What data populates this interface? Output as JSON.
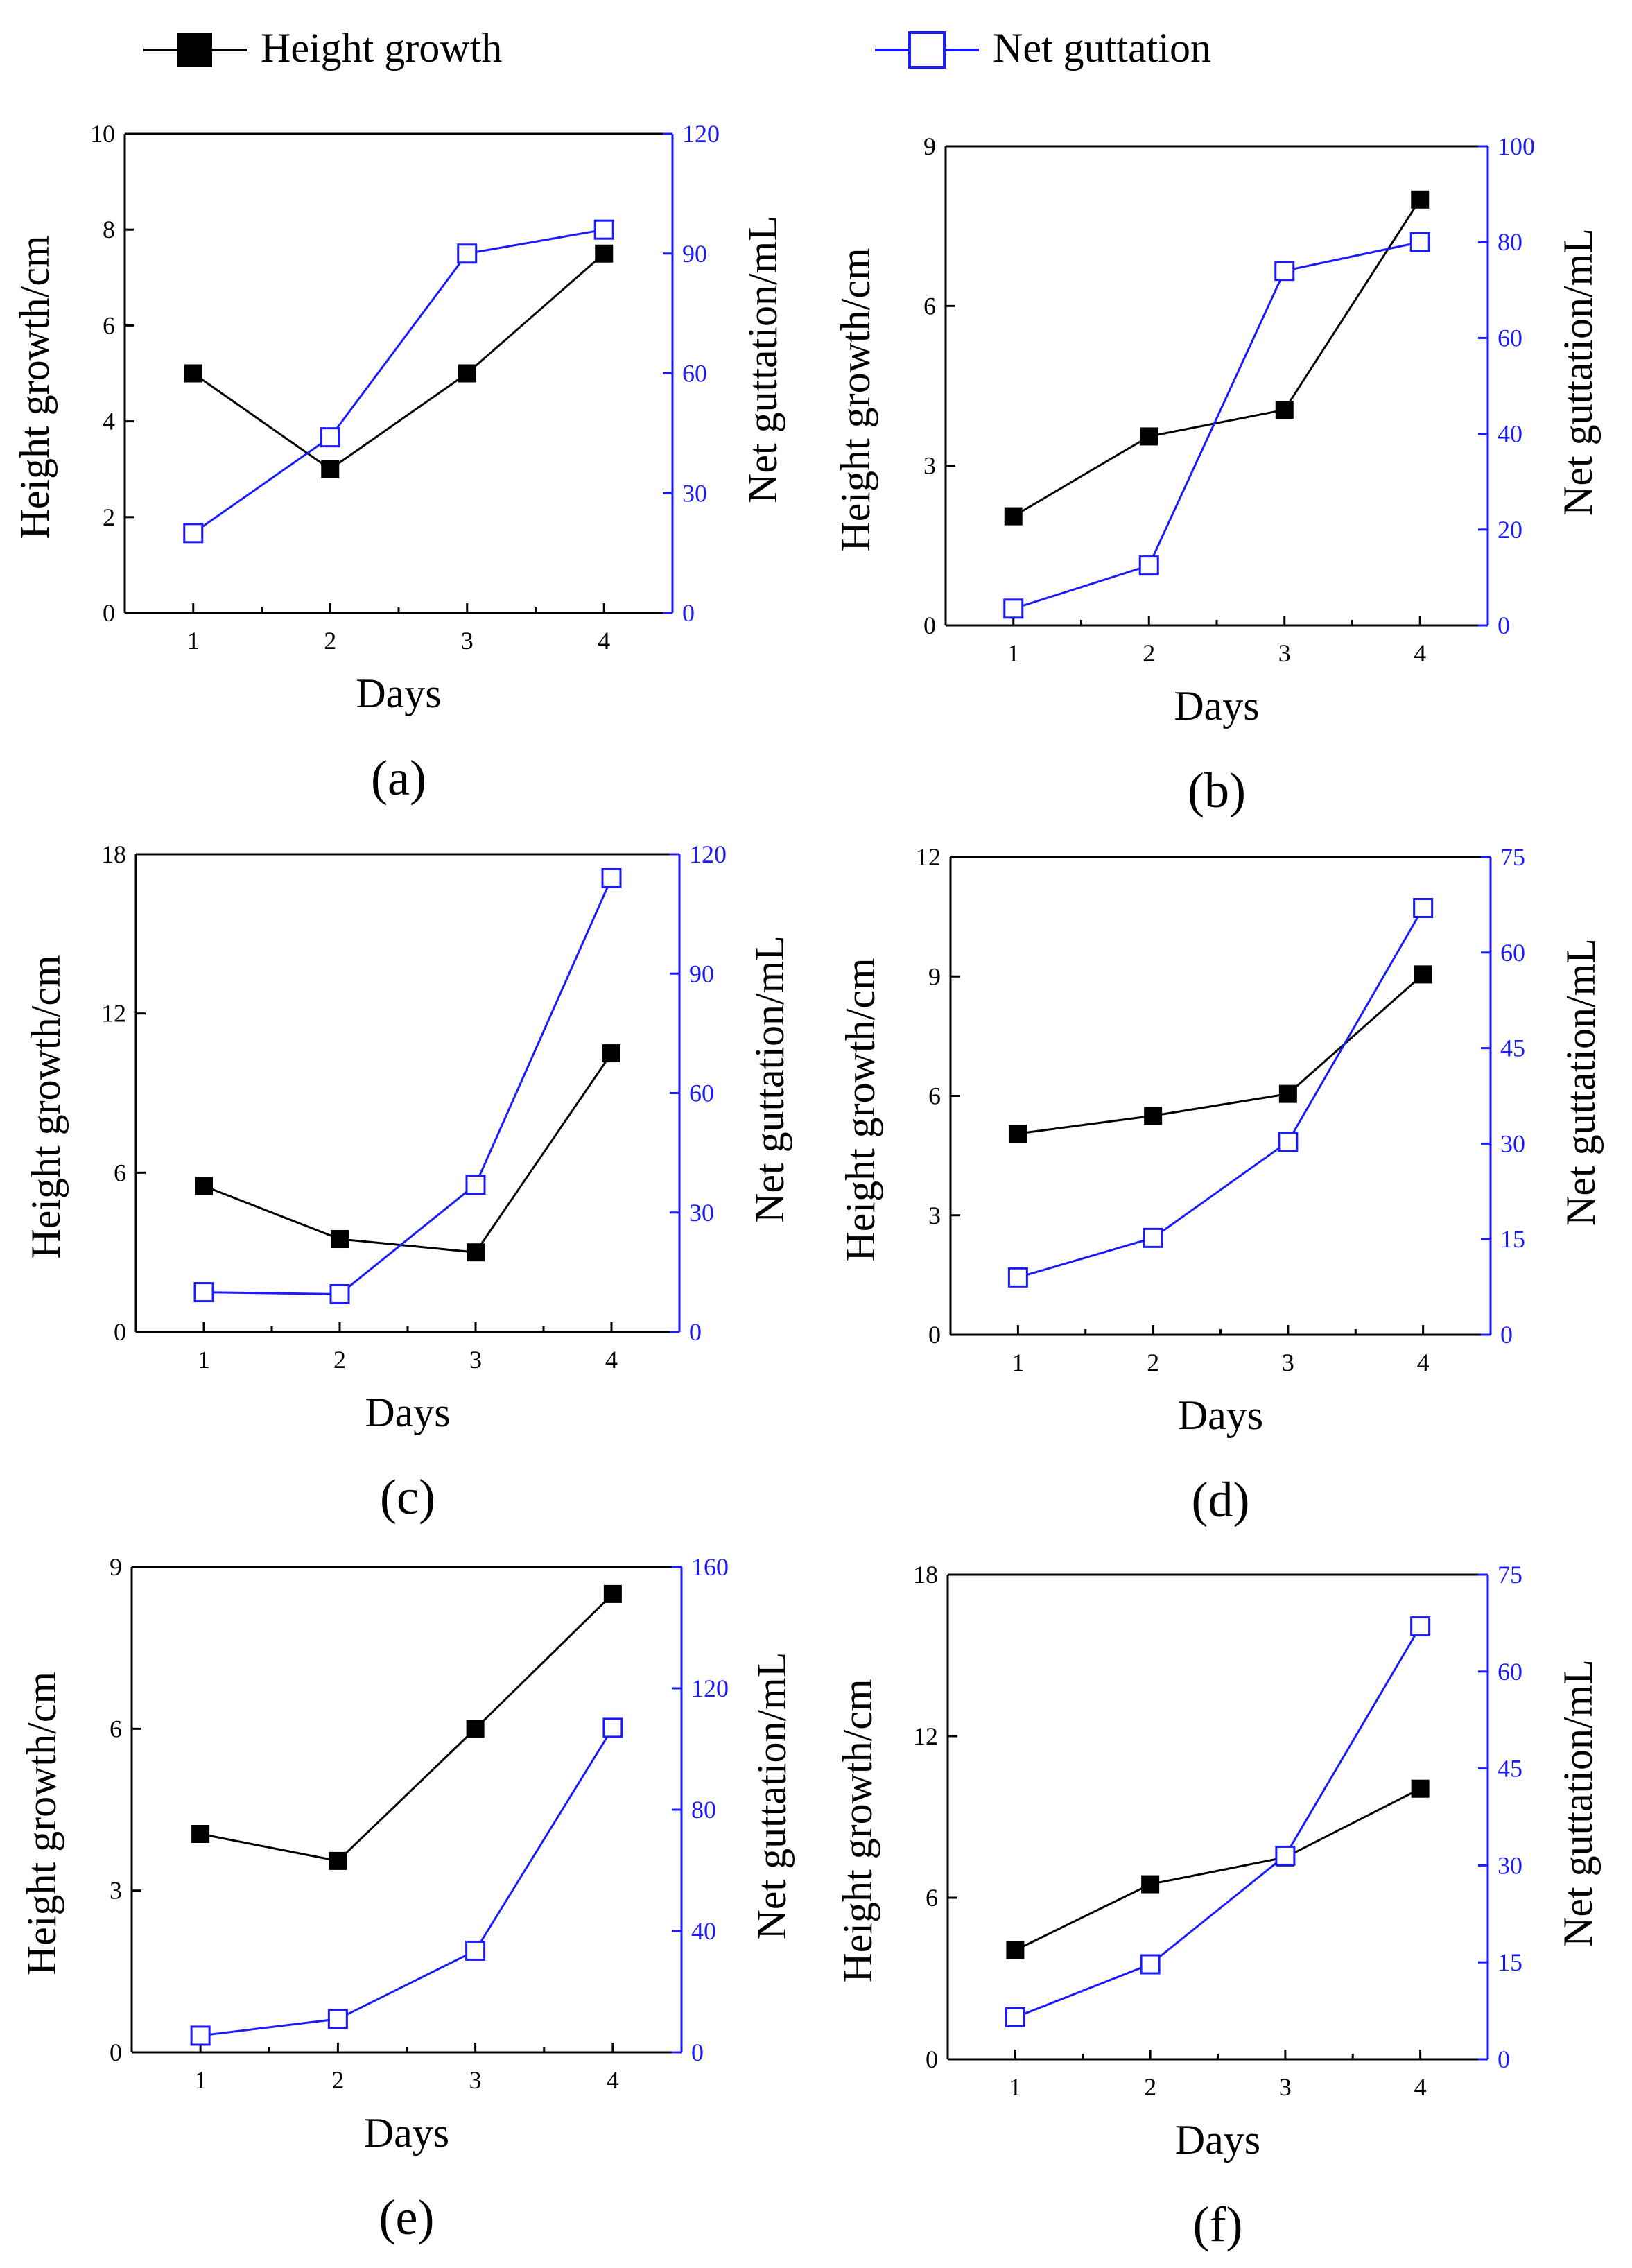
{
  "colors": {
    "height_series": "#000000",
    "guttation_series": "#1a1aff"
  },
  "legend": {
    "placement": "top",
    "entries": [
      {
        "label": "Height growth",
        "marker": "filled-square",
        "color": "#000000"
      },
      {
        "label": "Net guttation",
        "marker": "hollow-square",
        "color": "#1a1aff"
      }
    ]
  },
  "chart_data": [
    {
      "panel": "(a)",
      "type": "line",
      "xlabel": "Days",
      "ylabel": "Height growth/cm",
      "y2label": "Net guttation/mL",
      "x": [
        1,
        2,
        3,
        4
      ],
      "xticks": [
        "1",
        "2",
        "3",
        "4"
      ],
      "ylim": [
        0,
        10
      ],
      "yticks": [
        "0",
        "2",
        "4",
        "6",
        "8",
        "10"
      ],
      "y2lim": [
        0,
        120
      ],
      "y2ticks": [
        "0",
        "30",
        "60",
        "90",
        "120"
      ],
      "series": [
        {
          "name": "Height growth",
          "axis": "left",
          "values": [
            5.0,
            3.0,
            5.0,
            7.5
          ]
        },
        {
          "name": "Net guttation",
          "axis": "right",
          "values": [
            20,
            44,
            90,
            96
          ]
        }
      ]
    },
    {
      "panel": "(b)",
      "type": "line",
      "xlabel": "Days",
      "ylabel": "Height growth/cm",
      "y2label": "Net guttation/mL",
      "x": [
        1,
        2,
        3,
        4
      ],
      "xticks": [
        "1",
        "2",
        "3",
        "4"
      ],
      "ylim": [
        0,
        9
      ],
      "yticks": [
        "0",
        "3",
        "6",
        "9"
      ],
      "y2lim": [
        0,
        100
      ],
      "y2ticks": [
        "0",
        "20",
        "40",
        "60",
        "80",
        "100"
      ],
      "series": [
        {
          "name": "Height growth",
          "axis": "left",
          "values": [
            2.05,
            3.55,
            4.05,
            8.0
          ]
        },
        {
          "name": "Net guttation",
          "axis": "right",
          "values": [
            3.5,
            12.5,
            74,
            80
          ]
        }
      ]
    },
    {
      "panel": "(c)",
      "type": "line",
      "xlabel": "Days",
      "ylabel": "Height growth/cm",
      "y2label": "Net guttation/mL",
      "x": [
        1,
        2,
        3,
        4
      ],
      "xticks": [
        "1",
        "2",
        "3",
        "4"
      ],
      "ylim": [
        0,
        18
      ],
      "yticks": [
        "0",
        "6",
        "12",
        "18"
      ],
      "y2lim": [
        0,
        120
      ],
      "y2ticks": [
        "0",
        "30",
        "60",
        "90",
        "120"
      ],
      "series": [
        {
          "name": "Height growth",
          "axis": "left",
          "values": [
            5.5,
            3.5,
            3.0,
            10.5
          ]
        },
        {
          "name": "Net guttation",
          "axis": "right",
          "values": [
            10,
            9.5,
            37,
            114
          ]
        }
      ]
    },
    {
      "panel": "(d)",
      "type": "line",
      "xlabel": "Days",
      "ylabel": "Height growth/cm",
      "y2label": "Net guttation/mL",
      "x": [
        1,
        2,
        3,
        4
      ],
      "xticks": [
        "1",
        "2",
        "3",
        "4"
      ],
      "ylim": [
        0,
        12
      ],
      "yticks": [
        "0",
        "3",
        "6",
        "9",
        "12"
      ],
      "y2lim": [
        0,
        75
      ],
      "y2ticks": [
        "0",
        "15",
        "30",
        "45",
        "60",
        "75"
      ],
      "series": [
        {
          "name": "Height growth",
          "axis": "left",
          "values": [
            5.05,
            5.5,
            6.05,
            9.05
          ]
        },
        {
          "name": "Net guttation",
          "axis": "right",
          "values": [
            9,
            15.2,
            30.3,
            67
          ]
        }
      ]
    },
    {
      "panel": "(e)",
      "type": "line",
      "xlabel": "Days",
      "ylabel": "Height growth/cm",
      "y2label": "Net guttation/mL",
      "x": [
        1,
        2,
        3,
        4
      ],
      "xticks": [
        "1",
        "2",
        "3",
        "4"
      ],
      "ylim": [
        0,
        9
      ],
      "yticks": [
        "0",
        "3",
        "6",
        "9"
      ],
      "y2lim": [
        0,
        160
      ],
      "y2ticks": [
        "0",
        "40",
        "80",
        "120",
        "160"
      ],
      "series": [
        {
          "name": "Height growth",
          "axis": "left",
          "values": [
            4.05,
            3.55,
            6.0,
            8.5
          ]
        },
        {
          "name": "Net guttation",
          "axis": "right",
          "values": [
            5.5,
            11,
            33.5,
            107
          ]
        }
      ]
    },
    {
      "panel": "(f)",
      "type": "line",
      "xlabel": "Days",
      "ylabel": "Height growth/cm",
      "y2label": "Net guttation/mL",
      "x": [
        1,
        2,
        3,
        4
      ],
      "xticks": [
        "1",
        "2",
        "3",
        "4"
      ],
      "ylim": [
        0,
        18
      ],
      "yticks": [
        "0",
        "6",
        "12",
        "18"
      ],
      "y2lim": [
        0,
        75
      ],
      "y2ticks": [
        "0",
        "15",
        "30",
        "45",
        "60",
        "75"
      ],
      "series": [
        {
          "name": "Height growth",
          "axis": "left",
          "values": [
            4.05,
            6.5,
            7.5,
            10.05
          ]
        },
        {
          "name": "Net guttation",
          "axis": "right",
          "values": [
            6.5,
            14.7,
            31.5,
            67
          ]
        }
      ]
    }
  ]
}
